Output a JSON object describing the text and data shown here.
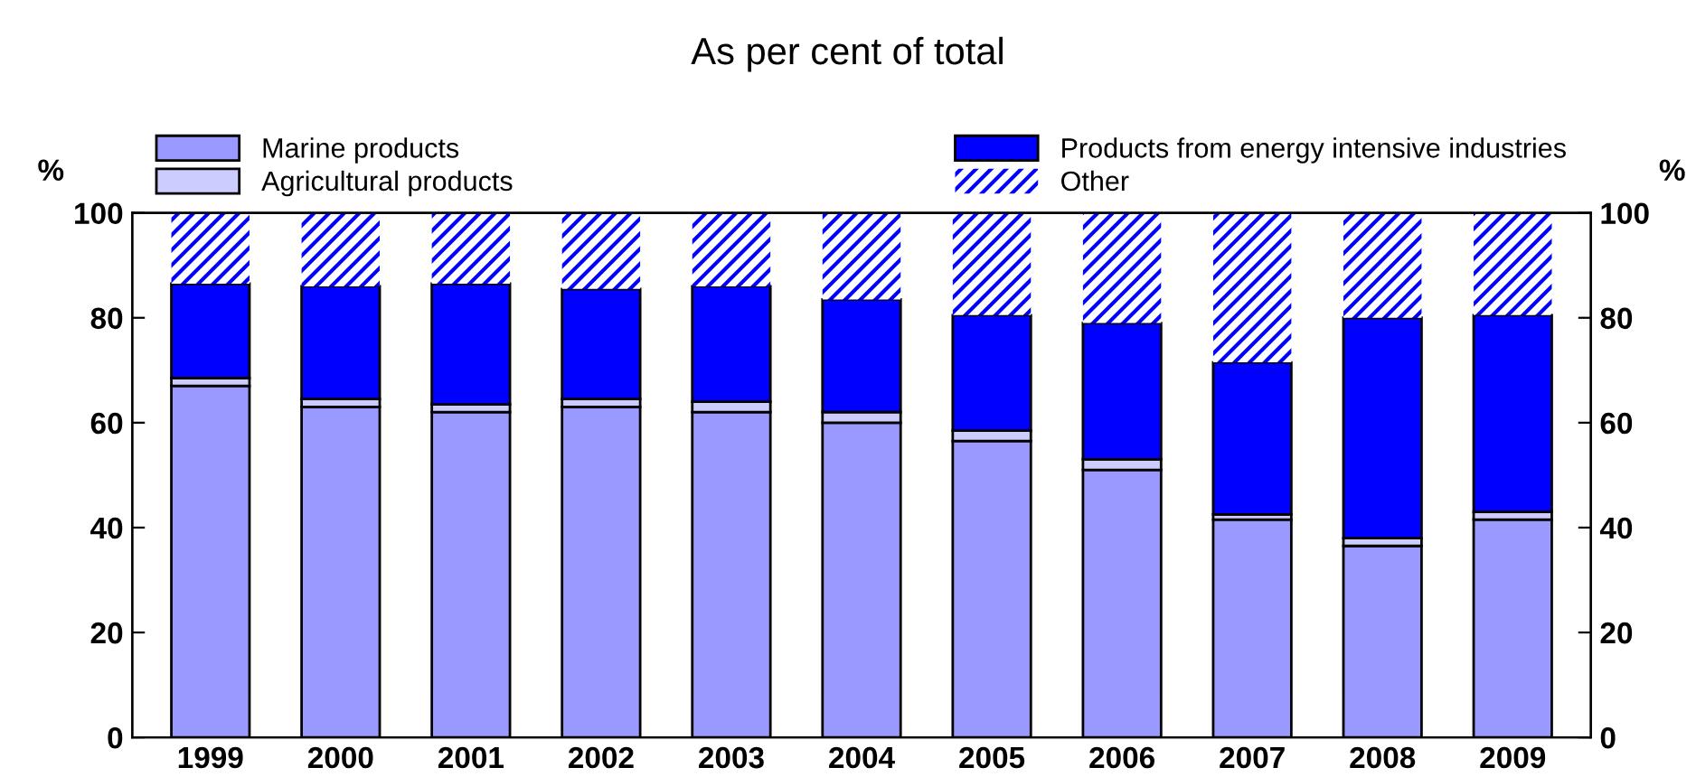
{
  "chart_data": {
    "type": "bar",
    "stacked": true,
    "title": "As per cent of total",
    "ylabel": "%",
    "y2label": "%",
    "categories": [
      "1999",
      "2000",
      "2001",
      "2002",
      "2003",
      "2004",
      "2005",
      "2006",
      "2007",
      "2008",
      "2009"
    ],
    "series": [
      {
        "name": "Marine products",
        "color": "#9999ff",
        "values": [
          67,
          63,
          62,
          63,
          62,
          60,
          56.5,
          51,
          41.5,
          36.5,
          41.5
        ]
      },
      {
        "name": "Agricultural products",
        "color": "#ccccff",
        "values": [
          1.5,
          1.5,
          1.5,
          1.5,
          2,
          2,
          2,
          2,
          1,
          1.5,
          1.5
        ]
      },
      {
        "name": "Products from energy intensive industries",
        "color": "#0000ff",
        "values": [
          18,
          21.5,
          23,
          21,
          22,
          21.5,
          22,
          26,
          29,
          42,
          37.5
        ]
      },
      {
        "name": "Other",
        "color": "#0000ff",
        "values": [
          13.5,
          14,
          13.5,
          14.5,
          14,
          16.5,
          19.5,
          21,
          28.5,
          20,
          19.5
        ]
      }
    ],
    "ylim": [
      0,
      100
    ],
    "yticks": [
      0,
      20,
      40,
      60,
      80,
      100
    ],
    "y2lim": [
      0,
      100
    ],
    "y2ticks": [
      0,
      20,
      40,
      60,
      80,
      100
    ],
    "grid": false,
    "legend": "top"
  }
}
